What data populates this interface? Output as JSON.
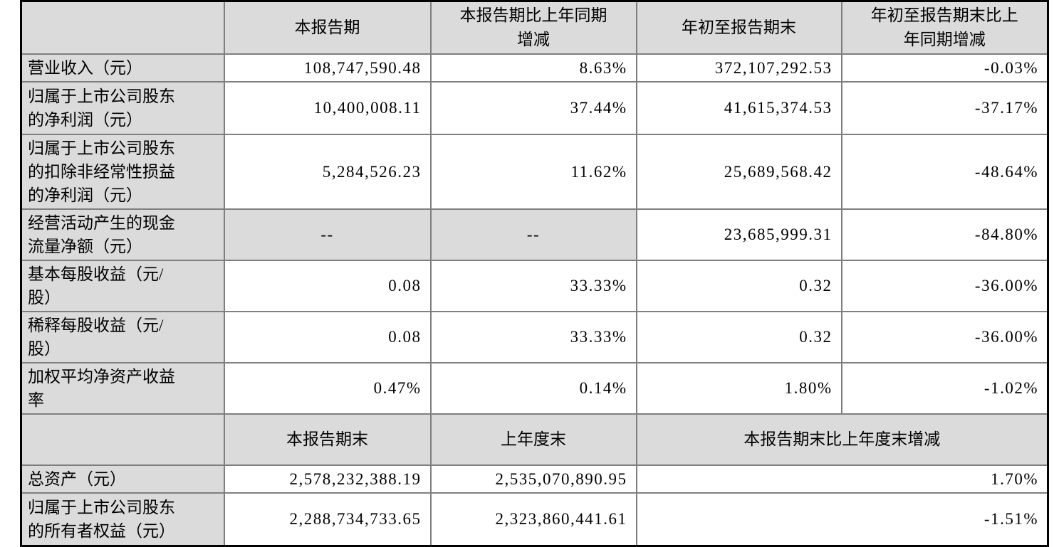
{
  "table": {
    "colors": {
      "cell_fill_gray": "#dbdbdb",
      "border_inner": "#7f7f7f",
      "border_outer": "#000000",
      "text": "#000000"
    },
    "section1": {
      "headers": [
        "",
        "本报告期",
        "本报告期比上年同期\n增减",
        "年初至报告期末",
        "年初至报告期末比上\n年同期增减"
      ],
      "rows": [
        {
          "label": "营业收入（元）",
          "cells": [
            "108,747,590.48",
            "8.63%",
            "372,107,292.53",
            "-0.03%"
          ]
        },
        {
          "label": "归属于上市公司股东\n的净利润（元）",
          "cells": [
            "10,400,008.11",
            "37.44%",
            "41,615,374.53",
            "-37.17%"
          ]
        },
        {
          "label": "归属于上市公司股东\n的扣除非经常性损益\n的净利润（元）",
          "cells": [
            "5,284,526.23",
            "11.62%",
            "25,689,568.42",
            "-48.64%"
          ]
        },
        {
          "label": "经营活动产生的现金\n流量净额（元）",
          "cells": [
            "--",
            "--",
            "23,685,999.31",
            "-84.80%"
          ],
          "gray_cells": [
            0,
            1
          ]
        },
        {
          "label": "基本每股收益（元/\n股）",
          "cells": [
            "0.08",
            "33.33%",
            "0.32",
            "-36.00%"
          ]
        },
        {
          "label": "稀释每股收益（元/\n股）",
          "cells": [
            "0.08",
            "33.33%",
            "0.32",
            "-36.00%"
          ]
        },
        {
          "label": "加权平均净资产收益\n率",
          "cells": [
            "0.47%",
            "0.14%",
            "1.80%",
            "-1.02%"
          ]
        }
      ]
    },
    "section2": {
      "headers": [
        "",
        "本报告期末",
        "上年度末",
        "本报告期末比上年度末增减"
      ],
      "rows": [
        {
          "label": "总资产（元）",
          "cells": [
            "2,578,232,388.19",
            "2,535,070,890.95",
            "1.70%"
          ]
        },
        {
          "label": "归属于上市公司股东\n的所有者权益（元）",
          "cells": [
            "2,288,734,733.65",
            "2,323,860,441.61",
            "-1.51%"
          ]
        }
      ]
    }
  }
}
